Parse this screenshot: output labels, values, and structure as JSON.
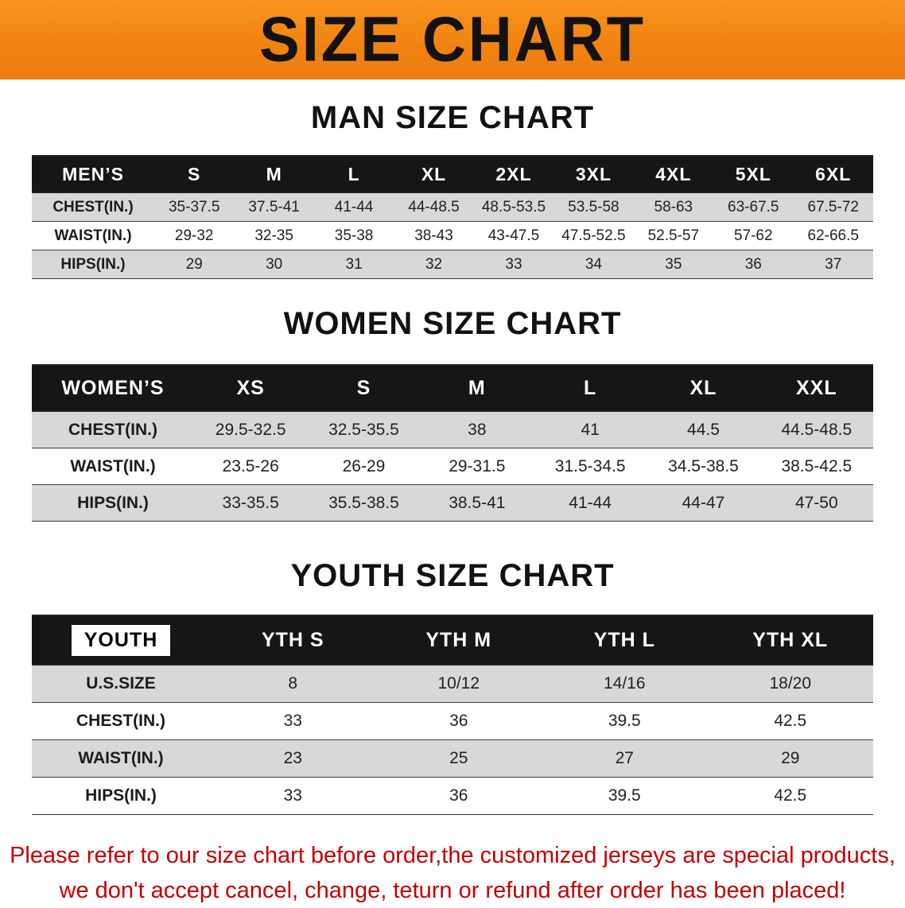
{
  "banner": {
    "title": "SIZE CHART"
  },
  "colors": {
    "banner_orange": "#F1820F",
    "header_black": "#161616",
    "stripe_gray": "#D8D8D8",
    "footnote_red": "#C30000"
  },
  "sections": [
    {
      "id": "men",
      "heading": "MAN SIZE CHART",
      "header_label": "MEN’S",
      "columns": [
        "S",
        "M",
        "L",
        "XL",
        "2XL",
        "3XL",
        "4XL",
        "5XL",
        "6XL"
      ],
      "rows": [
        {
          "label": "CHEST(IN.)",
          "values": [
            "35-37.5",
            "37.5-41",
            "41-44",
            "44-48.5",
            "48.5-53.5",
            "53.5-58",
            "58-63",
            "63-67.5",
            "67.5-72"
          ]
        },
        {
          "label": "WAIST(IN.)",
          "values": [
            "29-32",
            "32-35",
            "35-38",
            "38-43",
            "43-47.5",
            "47.5-52.5",
            "52.5-57",
            "57-62",
            "62-66.5"
          ]
        },
        {
          "label": "HIPS(IN.)",
          "values": [
            "29",
            "30",
            "31",
            "32",
            "33",
            "34",
            "35",
            "36",
            "37"
          ]
        }
      ]
    },
    {
      "id": "women",
      "heading": "WOMEN SIZE CHART",
      "header_label": "WOMEN’S",
      "columns": [
        "XS",
        "S",
        "M",
        "L",
        "XL",
        "XXL"
      ],
      "rows": [
        {
          "label": "CHEST(IN.)",
          "values": [
            "29.5-32.5",
            "32.5-35.5",
            "38",
            "41",
            "44.5",
            "44.5-48.5"
          ]
        },
        {
          "label": "WAIST(IN.)",
          "values": [
            "23.5-26",
            "26-29",
            "29-31.5",
            "31.5-34.5",
            "34.5-38.5",
            "38.5-42.5"
          ]
        },
        {
          "label": "HIPS(IN.)",
          "values": [
            "33-35.5",
            "35.5-38.5",
            "38.5-41",
            "41-44",
            "44-47",
            "47-50"
          ]
        }
      ]
    },
    {
      "id": "youth",
      "heading": "YOUTH SIZE CHART",
      "header_label": "YOUTH",
      "columns": [
        "YTH S",
        "YTH M",
        "YTH L",
        "YTH XL"
      ],
      "rows": [
        {
          "label": "U.S.SIZE",
          "values": [
            "8",
            "10/12",
            "14/16",
            "18/20"
          ]
        },
        {
          "label": "CHEST(IN.)",
          "values": [
            "33",
            "36",
            "39.5",
            "42.5"
          ]
        },
        {
          "label": "WAIST(IN.)",
          "values": [
            "23",
            "25",
            "27",
            "29"
          ]
        },
        {
          "label": "HIPS(IN.)",
          "values": [
            "33",
            "36",
            "39.5",
            "42.5"
          ]
        }
      ]
    }
  ],
  "footnote": {
    "line1": "Please refer to our size chart before order,the customized jerseys are special products,",
    "line2": "we don't accept cancel, change, teturn or refund after order has been placed!"
  }
}
